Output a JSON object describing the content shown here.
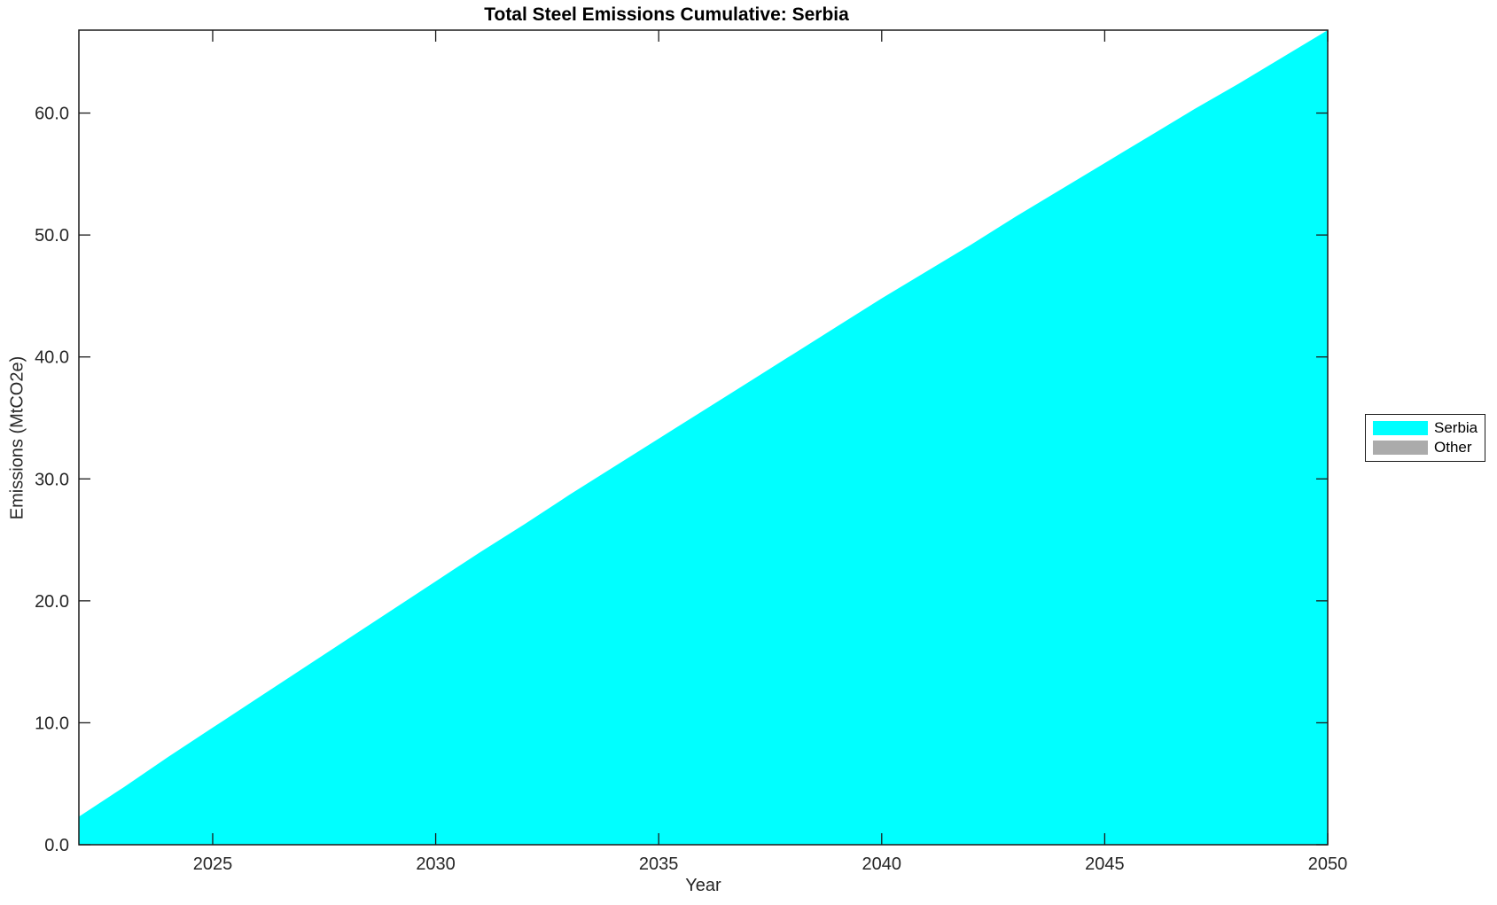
{
  "chart_data": {
    "type": "area",
    "title": "Total Steel Emissions Cumulative: Serbia",
    "xlabel": "Year",
    "ylabel": "Emissions (MtCO2e)",
    "x": [
      2022,
      2023,
      2024,
      2025,
      2026,
      2027,
      2028,
      2029,
      2030,
      2031,
      2032,
      2033,
      2034,
      2035,
      2036,
      2037,
      2038,
      2039,
      2040,
      2041,
      2042,
      2043,
      2044,
      2045,
      2046,
      2047,
      2048,
      2049,
      2050
    ],
    "series": [
      {
        "name": "Serbia",
        "color": "#00FFFF",
        "values": [
          2.3,
          4.7,
          7.2,
          9.6,
          12.0,
          14.4,
          16.8,
          19.2,
          21.6,
          24.0,
          26.3,
          28.7,
          31.0,
          33.3,
          35.6,
          37.9,
          40.2,
          42.5,
          44.8,
          47.0,
          49.2,
          51.5,
          53.7,
          55.9,
          58.1,
          60.3,
          62.4,
          64.6,
          66.8
        ]
      },
      {
        "name": "Other",
        "color": "#ABABAB",
        "values": [
          0,
          0,
          0,
          0,
          0,
          0,
          0,
          0,
          0,
          0,
          0,
          0,
          0,
          0,
          0,
          0,
          0,
          0,
          0,
          0,
          0,
          0,
          0,
          0,
          0,
          0,
          0,
          0,
          0
        ]
      }
    ],
    "xlim": [
      2022,
      2050
    ],
    "ylim": [
      0,
      66.8
    ],
    "xticks": {
      "values": [
        2025,
        2030,
        2035,
        2040,
        2045,
        2050
      ],
      "labels": [
        "2025",
        "2030",
        "2035",
        "2040",
        "2045",
        "2050"
      ]
    },
    "yticks": {
      "values": [
        0,
        10,
        20,
        30,
        40,
        50,
        60
      ],
      "labels": [
        "0.0",
        "10.0",
        "20.0",
        "30.0",
        "40.0",
        "50.0",
        "60.0"
      ]
    },
    "grid": false,
    "legend_position": "outside-right",
    "axis_color": "#1a1a1a",
    "tick_text_color": "#262626",
    "stacked": true
  }
}
